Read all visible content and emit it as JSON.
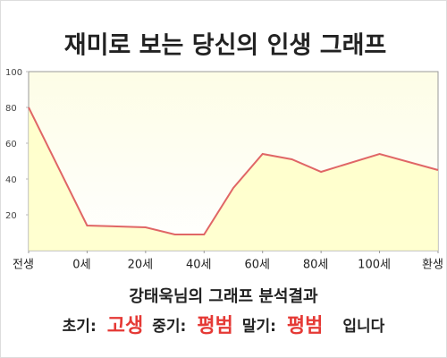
{
  "chart_data": {
    "type": "area",
    "title": "재미로 보는 당신의 인생 그래프",
    "x": [
      -20,
      0,
      20,
      30,
      40,
      50,
      60,
      70,
      80,
      100,
      120
    ],
    "values": [
      80,
      14,
      13,
      9,
      9,
      35,
      54,
      51,
      44,
      54,
      45
    ],
    "color": "#e06666",
    "fill_color": "#ffffc4",
    "xlim": [
      -20,
      120
    ],
    "xticks": [
      {
        "value": -20,
        "label": "전생"
      },
      {
        "value": 0,
        "label": "0세"
      },
      {
        "value": 20,
        "label": "20세"
      },
      {
        "value": 40,
        "label": "40세"
      },
      {
        "value": 60,
        "label": "60세"
      },
      {
        "value": 80,
        "label": "80세"
      },
      {
        "value": 100,
        "label": "100세"
      },
      {
        "value": 120,
        "label": "환생"
      }
    ],
    "ylim": [
      0,
      100
    ],
    "yticks": [
      20,
      40,
      60,
      80,
      100
    ],
    "grid": false,
    "annotations": {
      "heading": "강태욱님의 그래프 분석결과",
      "stages": [
        {
          "label": "초기:",
          "value": "고생"
        },
        {
          "label": "중기:",
          "value": "평범"
        },
        {
          "label": "말기:",
          "value": "평범"
        }
      ],
      "ending": "입니다"
    }
  }
}
